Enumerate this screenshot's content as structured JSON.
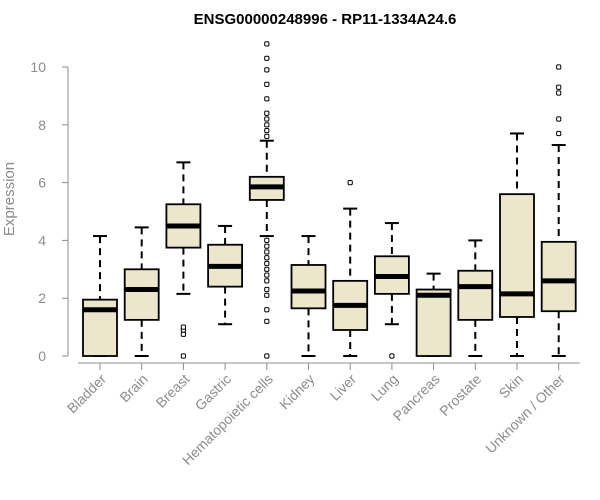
{
  "chart_data": {
    "type": "boxplot",
    "title": "ENSG00000248996 - RP11-1334A24.6",
    "xlabel": "",
    "ylabel": "Expression",
    "ylim": [
      0,
      10
    ],
    "yticks": [
      0,
      2,
      4,
      6,
      8,
      10
    ],
    "grid": false,
    "legend": "none",
    "colors": {
      "box_fill": "#ece6cd",
      "box_stroke": "#000000",
      "median": "#000000",
      "axis": "#8c8c8c",
      "tick_label": "#8c8c8c",
      "title": "#000000"
    },
    "categories": [
      "Bladder",
      "Brain",
      "Breast",
      "Gastric",
      "Hematopoietic cells",
      "Kidney",
      "Liver",
      "Lung",
      "Pancreas",
      "Prostate",
      "Skin",
      "Unknown / Other"
    ],
    "boxes": [
      {
        "category": "Bladder",
        "whisker_low": 0,
        "q1": 0,
        "median": 1.6,
        "q3": 1.95,
        "whisker_high": 4.15,
        "outliers": []
      },
      {
        "category": "Brain",
        "whisker_low": 0,
        "q1": 1.25,
        "median": 2.3,
        "q3": 3.0,
        "whisker_high": 4.45,
        "outliers": []
      },
      {
        "category": "Breast",
        "whisker_low": 2.15,
        "q1": 3.75,
        "median": 4.5,
        "q3": 5.25,
        "whisker_high": 6.7,
        "outliers": [
          0.0,
          0.75,
          0.9,
          1.0
        ]
      },
      {
        "category": "Gastric",
        "whisker_low": 1.1,
        "q1": 2.4,
        "median": 3.1,
        "q3": 3.85,
        "whisker_high": 4.5,
        "outliers": []
      },
      {
        "category": "Hematopoietic cells",
        "whisker_low": 4.15,
        "q1": 5.4,
        "median": 5.85,
        "q3": 6.2,
        "whisker_high": 7.45,
        "outliers": [
          0.0,
          1.2,
          1.6,
          2.1,
          2.3,
          2.6,
          2.8,
          3.0,
          3.2,
          3.4,
          3.6,
          3.8,
          4.0,
          7.6,
          7.8,
          8.0,
          8.2,
          8.4,
          8.9,
          9.4,
          9.9,
          10.3,
          10.8
        ]
      },
      {
        "category": "Kidney",
        "whisker_low": 0,
        "q1": 1.65,
        "median": 2.25,
        "q3": 3.15,
        "whisker_high": 4.15,
        "outliers": []
      },
      {
        "category": "Liver",
        "whisker_low": 0,
        "q1": 0.9,
        "median": 1.75,
        "q3": 2.6,
        "whisker_high": 5.1,
        "outliers": [
          6.0
        ]
      },
      {
        "category": "Lung",
        "whisker_low": 1.1,
        "q1": 2.15,
        "median": 2.75,
        "q3": 3.45,
        "whisker_high": 4.6,
        "outliers": [
          0.0
        ]
      },
      {
        "category": "Pancreas",
        "whisker_low": 0,
        "q1": 0,
        "median": 2.1,
        "q3": 2.3,
        "whisker_high": 2.85,
        "outliers": []
      },
      {
        "category": "Prostate",
        "whisker_low": 0,
        "q1": 1.25,
        "median": 2.4,
        "q3": 2.95,
        "whisker_high": 4.0,
        "outliers": []
      },
      {
        "category": "Skin",
        "whisker_low": 0,
        "q1": 1.35,
        "median": 2.15,
        "q3": 5.6,
        "whisker_high": 7.7,
        "outliers": []
      },
      {
        "category": "Unknown / Other",
        "whisker_low": 0,
        "q1": 1.55,
        "median": 2.6,
        "q3": 3.95,
        "whisker_high": 7.3,
        "outliers": [
          7.7,
          8.2,
          9.1,
          9.3,
          10.0
        ]
      }
    ]
  }
}
